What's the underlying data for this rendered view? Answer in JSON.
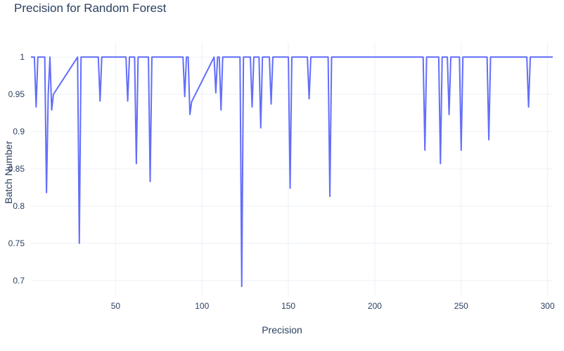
{
  "chart_data": {
    "type": "line",
    "title": "Precision for Random Forest",
    "xlabel": "Precision",
    "ylabel": "Batch Number",
    "xlim": [
      1,
      303
    ],
    "ylim": [
      0.68,
      1.02
    ],
    "xticks": [
      50,
      100,
      150,
      200,
      250,
      300
    ],
    "yticks": [
      0.7,
      0.75,
      0.8,
      0.85,
      0.9,
      0.95,
      1
    ],
    "ytick_labels": [
      "0.7",
      "0.75",
      "0.8",
      "0.85",
      "0.9",
      "0.95",
      "1"
    ],
    "grid": true,
    "line_color": "#636efa",
    "series": [
      {
        "x": [
          1,
          3,
          4,
          5,
          9,
          10,
          11,
          12,
          13,
          14,
          28,
          29,
          30,
          40,
          41,
          42,
          56,
          57,
          58,
          61,
          62,
          63,
          69,
          70,
          71,
          89,
          90,
          91,
          92,
          93,
          94,
          107,
          108,
          109,
          110,
          111,
          112,
          122,
          123,
          124,
          128,
          129,
          130,
          133,
          134,
          135,
          139,
          140,
          141,
          150,
          151,
          152,
          161,
          162,
          163,
          173,
          174,
          175,
          228,
          229,
          230,
          237,
          238,
          239,
          241,
          242,
          243,
          244,
          249,
          250,
          251,
          265,
          266,
          267,
          288,
          289,
          290,
          303
        ],
        "y": [
          1,
          1,
          0.933,
          1,
          1,
          0.818,
          0.95,
          1,
          0.929,
          0.95,
          1,
          0.75,
          1,
          1,
          0.941,
          1,
          1,
          0.941,
          1,
          1,
          0.857,
          1,
          1,
          0.833,
          1,
          1,
          0.947,
          1,
          1,
          0.923,
          0.94,
          1,
          0.952,
          1,
          1,
          0.929,
          1,
          1,
          0.692,
          1,
          1,
          0.933,
          1,
          1,
          0.905,
          1,
          1,
          0.937,
          1,
          1,
          0.824,
          1,
          1,
          0.944,
          1,
          1,
          0.813,
          1,
          1,
          0.875,
          1,
          1,
          0.857,
          1,
          1,
          1,
          0.923,
          1,
          1,
          0.875,
          1,
          1,
          0.889,
          1,
          1,
          0.933,
          1,
          1
        ]
      }
    ]
  }
}
